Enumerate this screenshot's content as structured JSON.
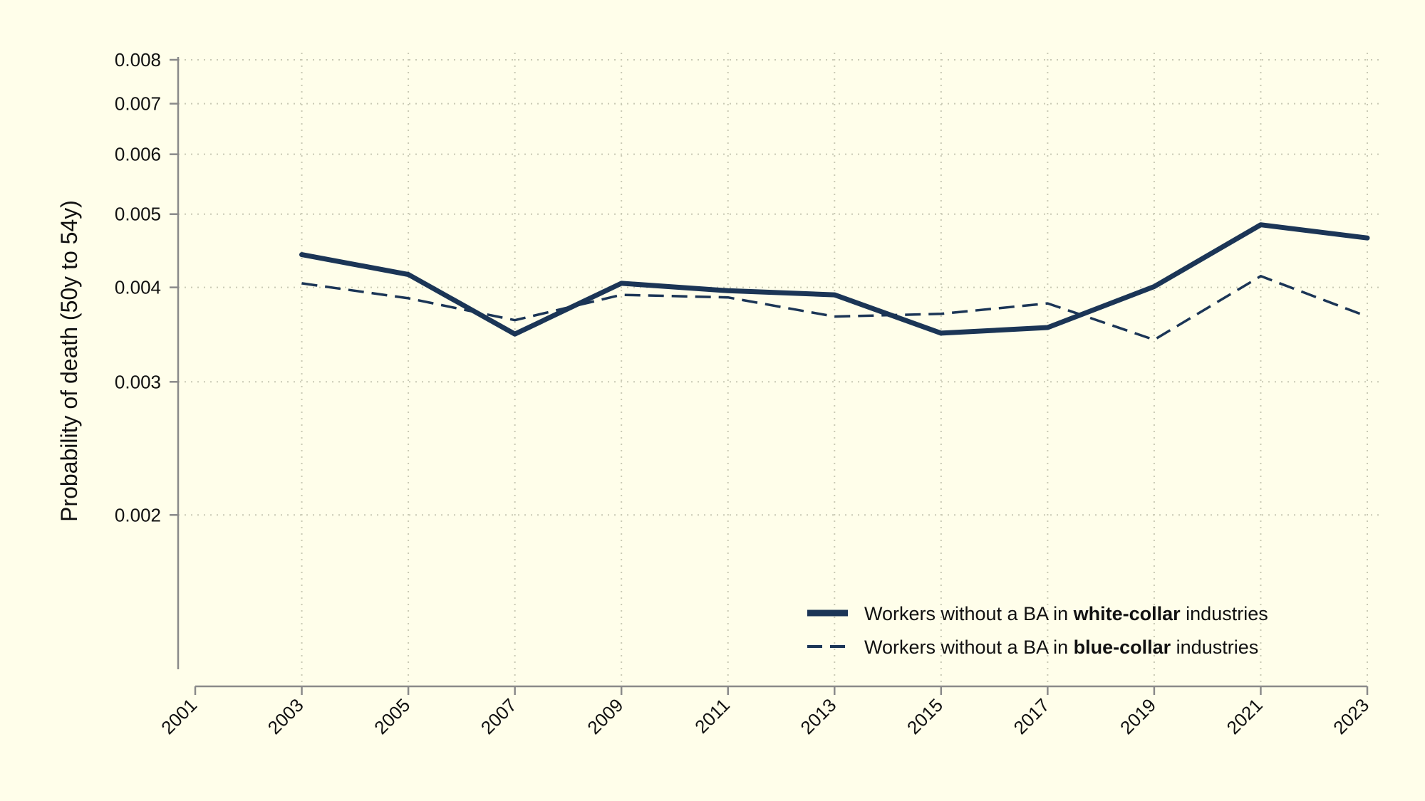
{
  "chart_data": {
    "type": "line",
    "ylabel": "Probability of death (50y to 54y)",
    "xlabel": "",
    "y_scale": "log",
    "ylim": [
      0.00125,
      0.008
    ],
    "yticks": [
      0.002,
      0.003,
      0.004,
      0.005,
      0.006,
      0.007,
      0.008
    ],
    "ytick_labels": [
      "0.002",
      "0.003",
      "0.004",
      "0.005",
      "0.006",
      "0.007",
      "0.008"
    ],
    "xlim": [
      2001,
      2023
    ],
    "xticks": [
      2001,
      2003,
      2005,
      2007,
      2009,
      2011,
      2013,
      2015,
      2017,
      2019,
      2021,
      2023
    ],
    "xtick_labels": [
      "2001",
      "2003",
      "2005",
      "2007",
      "2009",
      "2011",
      "2013",
      "2015",
      "2017",
      "2019",
      "2021",
      "2023"
    ],
    "grid": true,
    "legend_position": "bottom-right",
    "x": [
      2003,
      2005,
      2007,
      2009,
      2011,
      2013,
      2015,
      2017,
      2019,
      2021,
      2023
    ],
    "series": [
      {
        "name_parts": [
          "Workers without a BA in ",
          "white-collar",
          " industries"
        ],
        "style": "solid",
        "color": "#1b3556",
        "values": [
          0.00442,
          0.00416,
          0.00347,
          0.00405,
          0.00396,
          0.00391,
          0.00348,
          0.00354,
          0.00401,
          0.00484,
          0.00465
        ]
      },
      {
        "name_parts": [
          "Workers without a BA in ",
          "blue-collar",
          " industries"
        ],
        "style": "dashed",
        "color": "#1b3556",
        "values": [
          0.00405,
          0.00387,
          0.00362,
          0.00391,
          0.00388,
          0.00366,
          0.00369,
          0.00381,
          0.00341,
          0.00414,
          0.00366
        ]
      }
    ]
  }
}
